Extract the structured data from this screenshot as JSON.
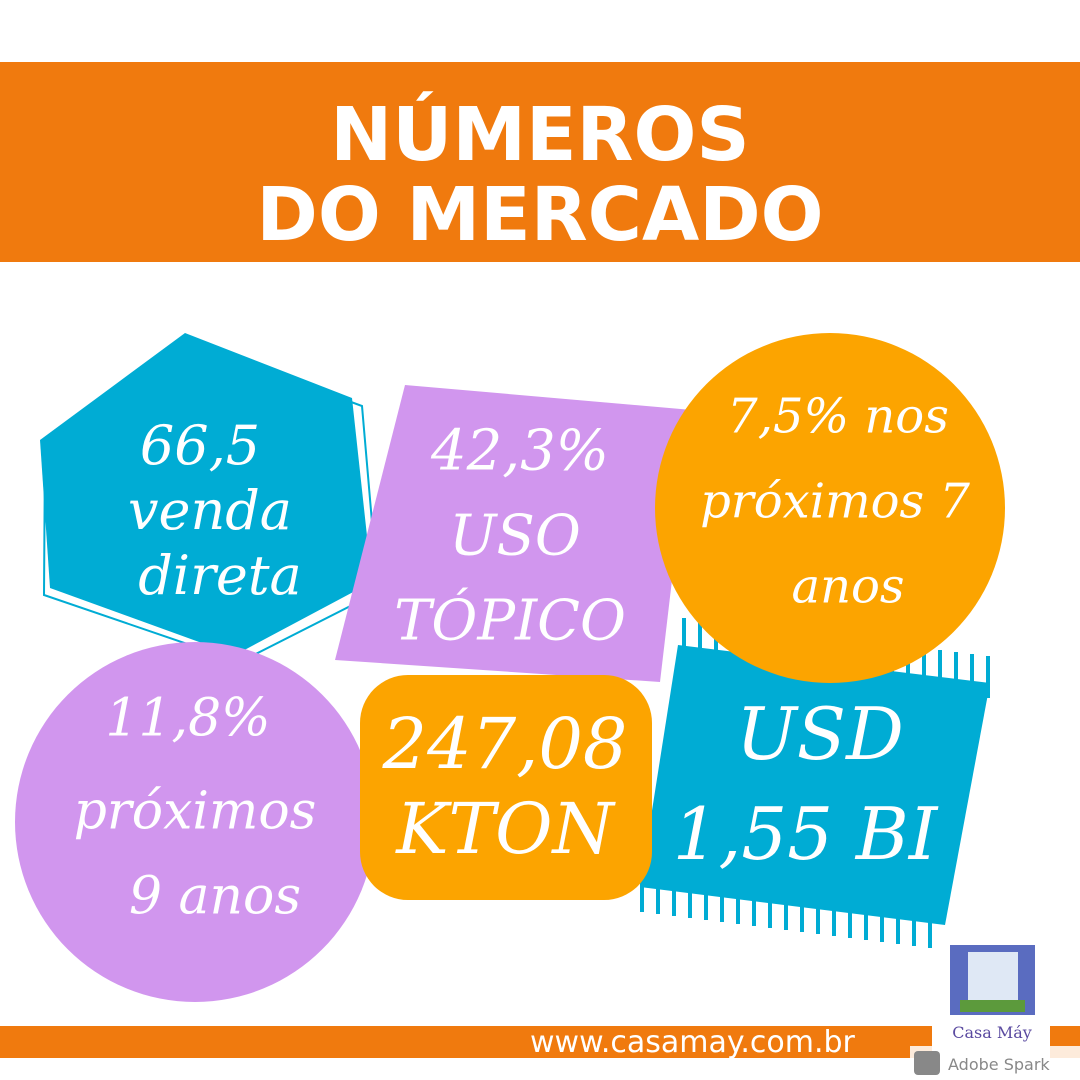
{
  "header": {
    "title_lines": [
      "NÚMEROS",
      "DO MERCADO"
    ]
  },
  "shapes": [
    {
      "lines": [
        "66,5",
        "venda",
        "direta"
      ]
    },
    {
      "lines": [
        "42,3%",
        "USO",
        "TÓPICO"
      ]
    },
    {
      "lines": [
        "7,5% nos",
        "próximos 7",
        "anos"
      ]
    },
    {
      "lines": [
        "11,8%",
        "próximos",
        "9 anos"
      ]
    },
    {
      "lines": [
        "247,08",
        "KTON"
      ]
    },
    {
      "lines": [
        "USD",
        "1,55 BI"
      ]
    }
  ],
  "footer": {
    "url": "www.casamay.com.br",
    "logo": "Casa Máy",
    "watermark": "Adobe Spark"
  }
}
